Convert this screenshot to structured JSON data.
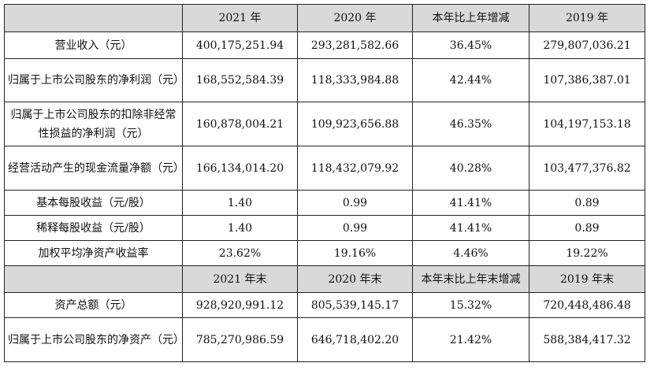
{
  "header1": [
    "",
    "2021 年",
    "2020 年",
    "本年比上年增减",
    "2019 年"
  ],
  "rows1": [
    {
      "label": "营业收入（元）",
      "values": [
        "400,175,251.94",
        "293,281,582.66",
        "36.45%",
        "279,807,036.21"
      ]
    },
    {
      "label": "归属于上市公司股东的净利润（元）",
      "values": [
        "168,552,584.39",
        "118,333,984.88",
        "42.44%",
        "107,386,387.01"
      ]
    },
    {
      "label": "归属于上市公司股东的扣除非经常性损益的净利润（元）",
      "values": [
        "160,878,004.21",
        "109,923,656.88",
        "46.35%",
        "104,197,153.18"
      ]
    },
    {
      "label": "经营活动产生的现金流量净额（元）",
      "values": [
        "166,134,014.20",
        "118,432,079.92",
        "40.28%",
        "103,477,376.82"
      ]
    },
    {
      "label": "基本每股收益（元/股）",
      "values": [
        "1.40",
        "0.99",
        "41.41%",
        "0.89"
      ]
    },
    {
      "label": "稀释每股收益（元/股）",
      "values": [
        "1.40",
        "0.99",
        "41.41%",
        "0.89"
      ]
    },
    {
      "label": "加权平均净资产收益率",
      "values": [
        "23.62%",
        "19.16%",
        "4.46%",
        "19.22%"
      ]
    }
  ],
  "header2": [
    "",
    "2021 年末",
    "2020 年末",
    "本年末比上年末增减",
    "2019 年末"
  ],
  "rows2": [
    {
      "label": "资产总额（元）",
      "values": [
        "928,920,991.12",
        "805,539,145.17",
        "15.32%",
        "720,448,486.48"
      ]
    },
    {
      "label": "归属于上市公司股东的净资产（元）",
      "values": [
        "785,270,986.59",
        "646,718,402.20",
        "21.42%",
        "588,384,417.32"
      ]
    }
  ]
}
